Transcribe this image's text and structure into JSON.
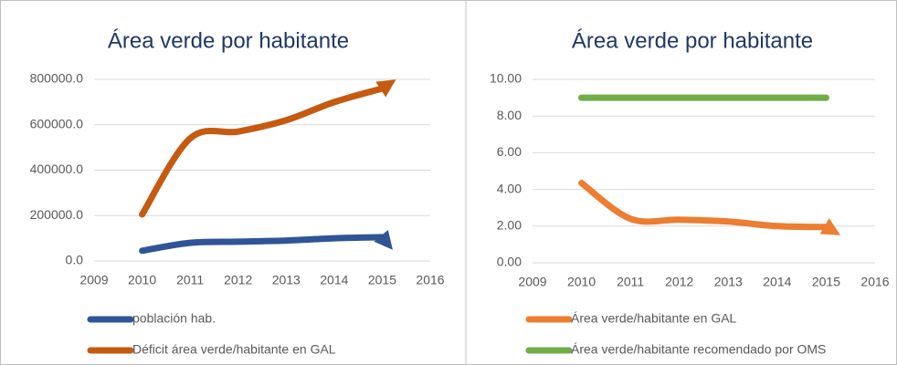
{
  "chart_data": [
    {
      "type": "line",
      "title": "Área verde por habitante",
      "x": [
        2010,
        2011,
        2012,
        2013,
        2014,
        2015
      ],
      "xlim": [
        2009,
        2016
      ],
      "xticks": [
        2009,
        2010,
        2011,
        2012,
        2013,
        2014,
        2015,
        2016
      ],
      "ylim": [
        0,
        800000
      ],
      "yticks": [
        {
          "value": 0,
          "label": "0.0"
        },
        {
          "value": 200000,
          "label": "200000.0"
        },
        {
          "value": 400000,
          "label": "400000.0"
        },
        {
          "value": 600000,
          "label": "600000.0"
        },
        {
          "value": 800000,
          "label": "800000.0"
        }
      ],
      "grid": true,
      "series": [
        {
          "name": "población  hab.",
          "color": "#2f5597",
          "values": [
            45000,
            80000,
            85000,
            90000,
            100000,
            105000
          ]
        },
        {
          "name": "Déficit área verde/habitante   en GAL",
          "color": "#c55a11",
          "values": [
            205000,
            540000,
            570000,
            620000,
            700000,
            760000
          ]
        }
      ]
    },
    {
      "type": "line",
      "title": "Área verde por habitante",
      "x": [
        2010,
        2011,
        2012,
        2013,
        2014,
        2015
      ],
      "xlim": [
        2009,
        2016
      ],
      "xticks": [
        2009,
        2010,
        2011,
        2012,
        2013,
        2014,
        2015,
        2016
      ],
      "ylim": [
        0,
        10
      ],
      "yticks": [
        {
          "value": 0,
          "label": "0.00"
        },
        {
          "value": 2,
          "label": "2.00"
        },
        {
          "value": 4,
          "label": "4.00"
        },
        {
          "value": 6,
          "label": "6.00"
        },
        {
          "value": 8,
          "label": "8.00"
        },
        {
          "value": 10,
          "label": "10.00"
        }
      ],
      "grid": true,
      "series": [
        {
          "name": "Área verde/habitante   en GAL",
          "color": "#ed7d31",
          "values": [
            4.35,
            2.4,
            2.35,
            2.25,
            2.0,
            1.95
          ]
        },
        {
          "name": "Área verde/habitante   recomendado por OMS",
          "color": "#70ad47",
          "values": [
            9,
            9,
            9,
            9,
            9,
            9
          ]
        }
      ]
    }
  ]
}
